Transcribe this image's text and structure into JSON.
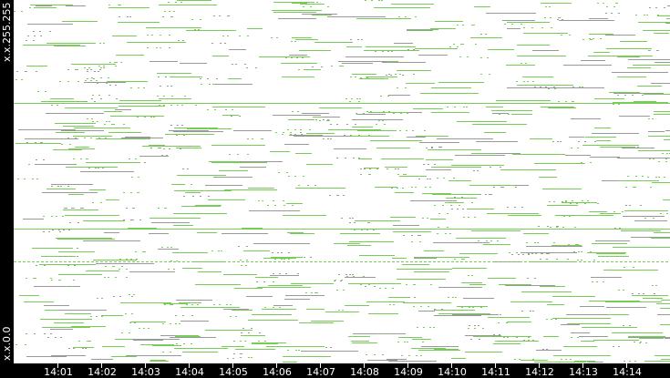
{
  "chart_data": {
    "type": "scatter",
    "title": "",
    "y_axis": {
      "top_label": "x.x.255.255",
      "bottom_label": "x.x.0.0"
    },
    "x_ticks": [
      "14:01",
      "14:02",
      "14:03",
      "14:04",
      "14:05",
      "14:06",
      "14:07",
      "14:08",
      "14:09",
      "14:10",
      "14:11",
      "14:12",
      "14:13",
      "14:14"
    ],
    "horizontal_lines": [
      {
        "style": "solid",
        "position_fraction": 0.717
      },
      {
        "style": "solid",
        "position_fraction": 0.371
      },
      {
        "style": "dotted",
        "position_fraction": 0.281
      }
    ],
    "colors": {
      "primary": "#77cc55",
      "secondary": "#999999",
      "background": "#ffffff",
      "frame": "#000000"
    }
  }
}
